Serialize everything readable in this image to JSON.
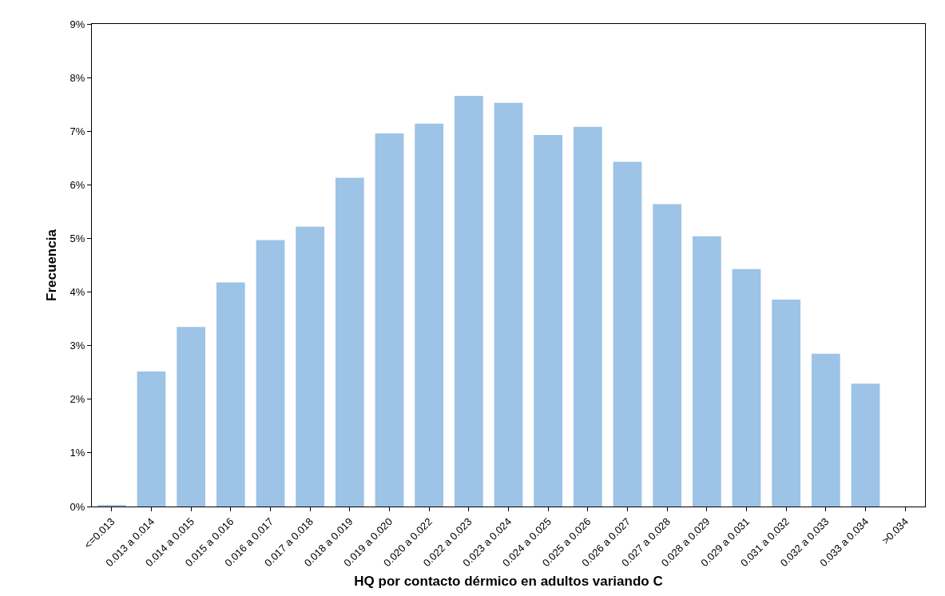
{
  "chart_data": {
    "type": "bar",
    "xlabel": "HQ por contacto dérmico en adultos variando C",
    "ylabel": "Frecuencia",
    "categories": [
      "<=0.013",
      "0.013 a 0.014",
      "0.014 a 0.015",
      "0.015 a 0.016",
      "0.016 a 0.017",
      "0.017 a 0.018",
      "0.018 a 0.019",
      "0.019 a 0.020",
      "0.020 a 0.022",
      "0.022 a 0.023",
      "0.023 a 0.024",
      "0.024 a 0.025",
      "0.025 a 0.026",
      "0.026 a 0.027",
      "0.027 a 0.028",
      "0.028 a 0.029",
      "0.029 a 0.031",
      "0.031 a 0.032",
      "0.032 a 0.033",
      "0.033 a 0.034",
      ">0.034"
    ],
    "values": [
      0.03,
      2.52,
      3.35,
      4.18,
      4.97,
      5.22,
      6.13,
      6.96,
      7.14,
      7.66,
      7.53,
      6.93,
      7.08,
      6.43,
      5.64,
      5.04,
      4.43,
      3.86,
      2.85,
      2.29,
      0
    ],
    "color": "#9dc3e6",
    "ylim": [
      0,
      9
    ],
    "yticks": [
      {
        "value": 0,
        "label": "0%"
      },
      {
        "value": 1,
        "label": "1%"
      },
      {
        "value": 2,
        "label": "2%"
      },
      {
        "value": 3,
        "label": "3%"
      },
      {
        "value": 4,
        "label": "4%"
      },
      {
        "value": 5,
        "label": "5%"
      },
      {
        "value": 6,
        "label": "6%"
      },
      {
        "value": 7,
        "label": "7%"
      },
      {
        "value": 8,
        "label": "8%"
      },
      {
        "value": 9,
        "label": "9%"
      }
    ],
    "legend": false
  }
}
